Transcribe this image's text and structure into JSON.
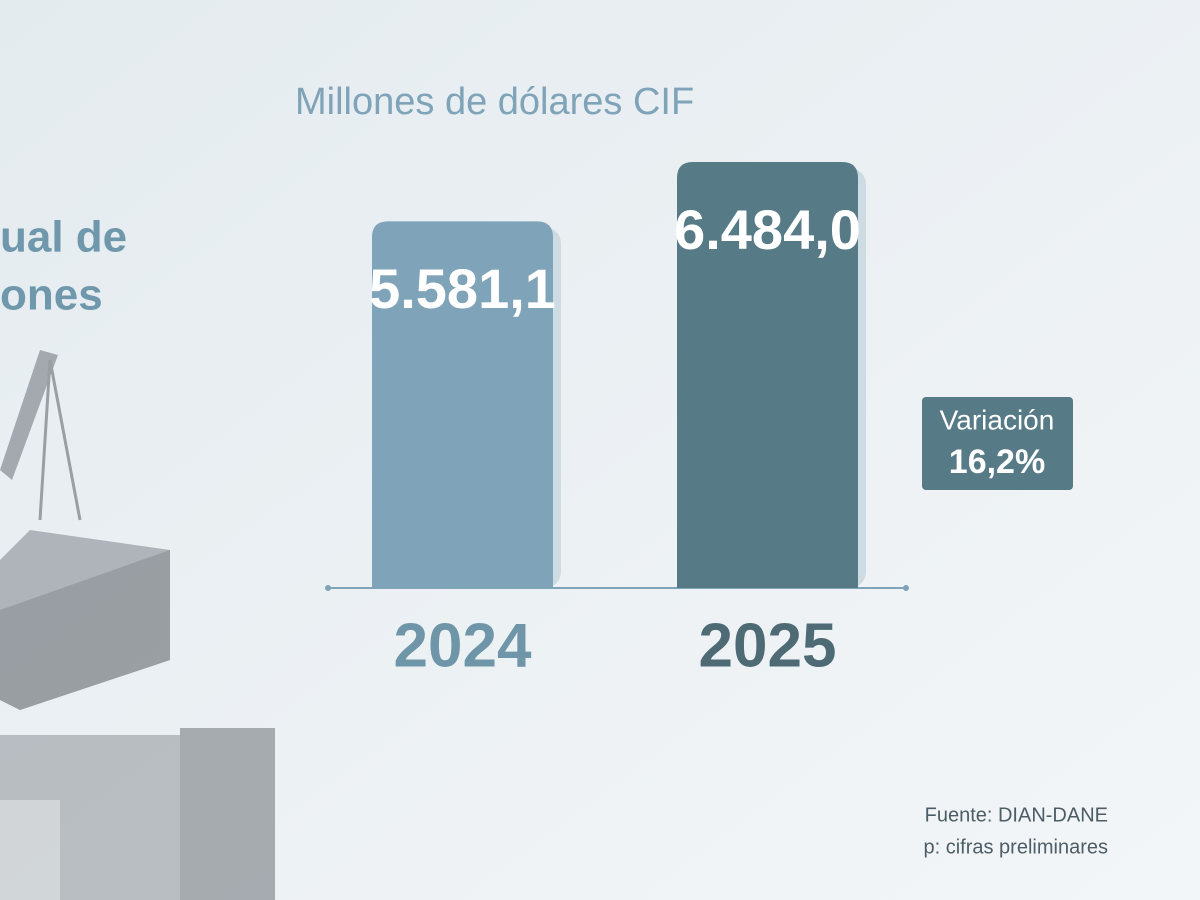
{
  "chart_data": {
    "type": "bar",
    "title": "Millones de dólares CIF",
    "side_title": [
      "ual de",
      "ones"
    ],
    "categories": [
      "2024",
      "2025"
    ],
    "values": [
      5581.1,
      6484.0
    ],
    "value_labels": [
      "5.581,1",
      "6.484,0"
    ],
    "colors": [
      "#7fa3b8",
      "#567a86"
    ],
    "variation": {
      "label": "Variación",
      "value": 16.2,
      "value_label": "16,2%"
    },
    "source": "Fuente: DIAN-DANE",
    "note": "p: cifras preliminares"
  }
}
